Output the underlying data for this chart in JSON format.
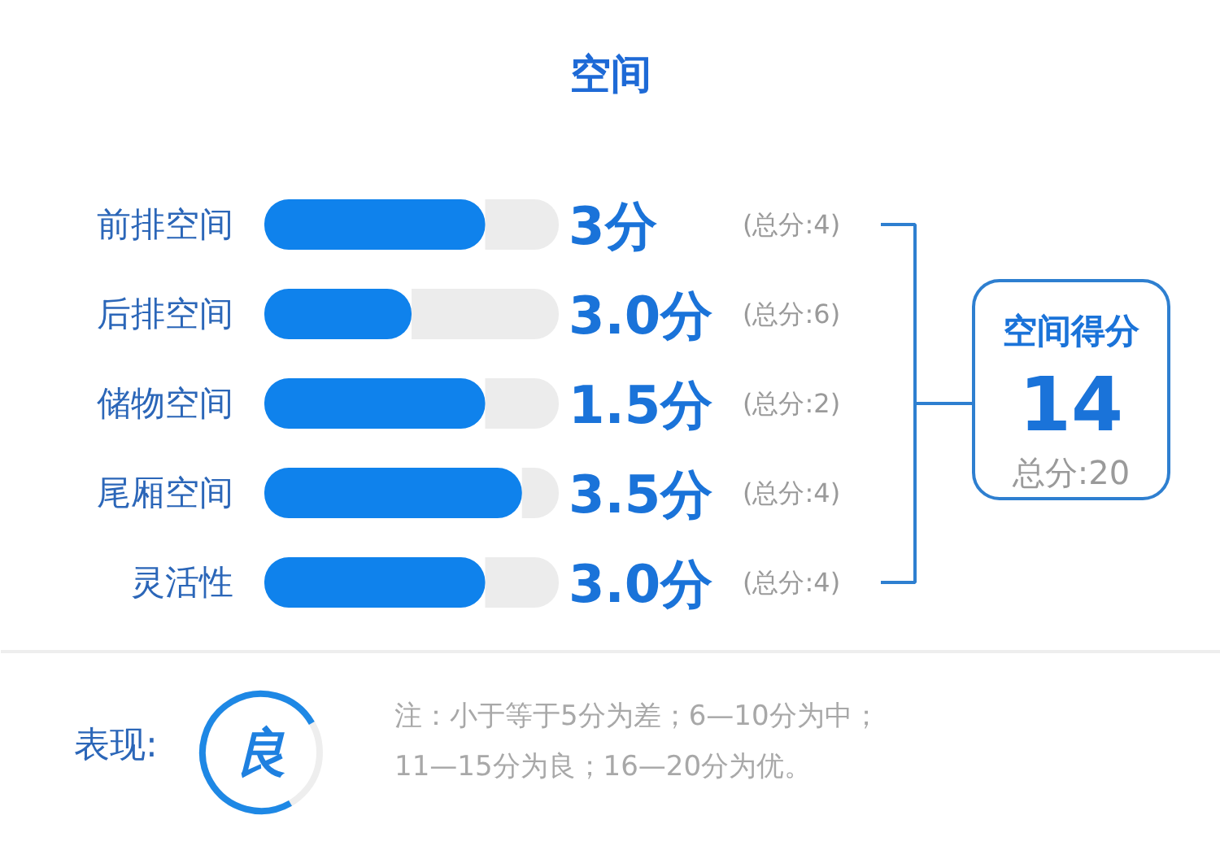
{
  "chart_data": [
    {
      "type": "bar",
      "orientation": "horizontal",
      "stacked": true,
      "title": "空间",
      "categories": [
        "前排空间"
      ],
      "series": [
        {
          "color": "#0f82ec",
          "values": [
            3
          ],
          "value_labels": [
            "3分"
          ]
        },
        {
          "color": "#ececec",
          "values": [
            1
          ]
        }
      ],
      "annotations": [
        "(总分:4)"
      ]
    },
    {
      "type": "bar",
      "orientation": "horizontal",
      "stacked": true,
      "categories": [
        "后排空间"
      ],
      "series": [
        {
          "color": "#0f82ec",
          "values": [
            3.0
          ],
          "value_labels": [
            "3.0分"
          ]
        },
        {
          "color": "#ececec",
          "values": [
            3
          ]
        }
      ],
      "annotations": [
        "(总分:6)"
      ]
    },
    {
      "type": "bar",
      "orientation": "horizontal",
      "stacked": true,
      "categories": [
        "储物空间"
      ],
      "series": [
        {
          "color": "#0f82ec",
          "values": [
            1.5
          ],
          "value_labels": [
            "1.5分"
          ]
        },
        {
          "color": "#ececec",
          "values": [
            0.5
          ]
        }
      ],
      "annotations": [
        "(总分:2)"
      ]
    },
    {
      "type": "bar",
      "orientation": "horizontal",
      "stacked": true,
      "categories": [
        "尾厢空间"
      ],
      "series": [
        {
          "color": "#0f82ec",
          "values": [
            3.5
          ],
          "value_labels": [
            "3.5分"
          ]
        },
        {
          "color": "#ececec",
          "values": [
            0.5
          ]
        }
      ],
      "annotations": [
        "(总分:4)"
      ]
    },
    {
      "type": "bar",
      "orientation": "horizontal",
      "stacked": true,
      "categories": [
        "灵活性"
      ],
      "series": [
        {
          "color": "#0f82ec",
          "values": [
            3.0
          ],
          "value_labels": [
            "3.0分"
          ]
        },
        {
          "color": "#ececec",
          "values": [
            1
          ]
        }
      ],
      "annotations": [
        "(总分:4)"
      ]
    },
    {
      "type": "other",
      "annotations": [
        "空间得分",
        "14",
        "总分:20"
      ]
    },
    {
      "type": "other",
      "annotations": [
        "表现:",
        "良",
        "注：小于等于5分为差；6—10分为中；11—15分为良；16—20分为优。"
      ]
    }
  ]
}
